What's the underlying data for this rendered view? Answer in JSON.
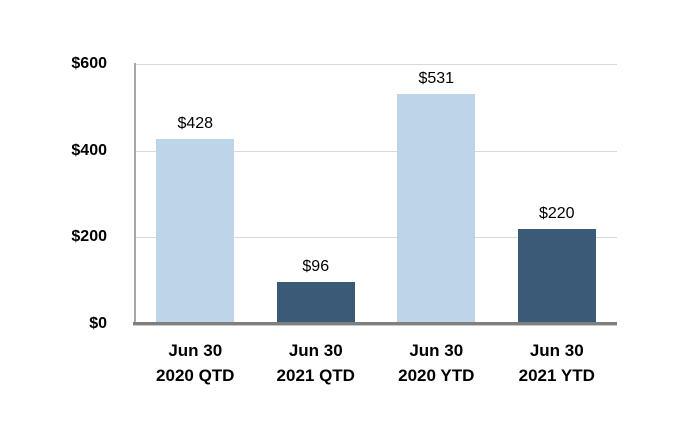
{
  "chart_data": {
    "type": "bar",
    "title": "",
    "xlabel": "",
    "ylabel": "",
    "categories": [
      "Jun 30 2020 QTD",
      "Jun 30 2021 QTD",
      "Jun 30 2020 YTD",
      "Jun 30 2021 YTD"
    ],
    "category_label_lines": [
      [
        "Jun 30",
        "2020 QTD"
      ],
      [
        "Jun 30",
        "2021 QTD"
      ],
      [
        "Jun 30",
        "2020 YTD"
      ],
      [
        "Jun 30",
        "2021 YTD"
      ]
    ],
    "values": [
      428,
      96,
      531,
      220
    ],
    "data_labels": [
      "$428",
      "$96",
      "$531",
      "$220"
    ],
    "bar_colors": [
      "#BCD5E8",
      "#3B5A77",
      "#BCD5E8",
      "#3B5A77"
    ],
    "y_axis": {
      "min": 0,
      "max": 600,
      "tick_interval": 200,
      "tick_labels": [
        "$0",
        "$200",
        "$400",
        "$600"
      ]
    },
    "grid": true,
    "legend": false,
    "colors": {
      "light_series": "#BCD5E8",
      "dark_series": "#3B5A77",
      "gridline": "#D9D9D9",
      "baseline": "#7F7F7F",
      "y_axis_line": "#A6A6A6",
      "text": "#000000",
      "background": "#FFFFFF"
    }
  }
}
